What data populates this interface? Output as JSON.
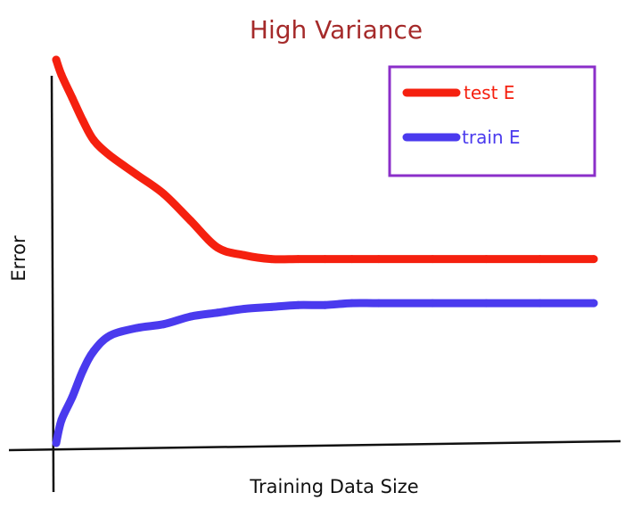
{
  "chart_data": {
    "type": "line",
    "title": "High Variance",
    "xlabel": "Training Data Size",
    "ylabel": "Error",
    "xlim": [
      0,
      100
    ],
    "ylim": [
      0,
      100
    ],
    "grid": false,
    "legend_position": "top-right",
    "series": [
      {
        "name": "test E",
        "color": "#f5200f",
        "x": [
          0,
          1,
          3,
          5,
          7,
          10,
          15,
          20,
          25,
          30,
          35,
          40,
          45,
          50,
          55,
          60,
          70,
          80,
          90,
          100
        ],
        "y": [
          100,
          96,
          90,
          84,
          79,
          75,
          70,
          65,
          58,
          51,
          49,
          48,
          48,
          48,
          48,
          48,
          48,
          48,
          48,
          48
        ]
      },
      {
        "name": "train E",
        "color": "#4a3aee",
        "x": [
          0,
          1,
          3,
          5,
          7,
          10,
          15,
          20,
          25,
          30,
          35,
          40,
          45,
          50,
          55,
          60,
          70,
          80,
          90,
          100
        ],
        "y": [
          0,
          6,
          12,
          19,
          24,
          28,
          30,
          31,
          33,
          34,
          35,
          35.5,
          36,
          36,
          36.5,
          36.5,
          36.5,
          36.5,
          36.5,
          36.5
        ]
      }
    ]
  }
}
